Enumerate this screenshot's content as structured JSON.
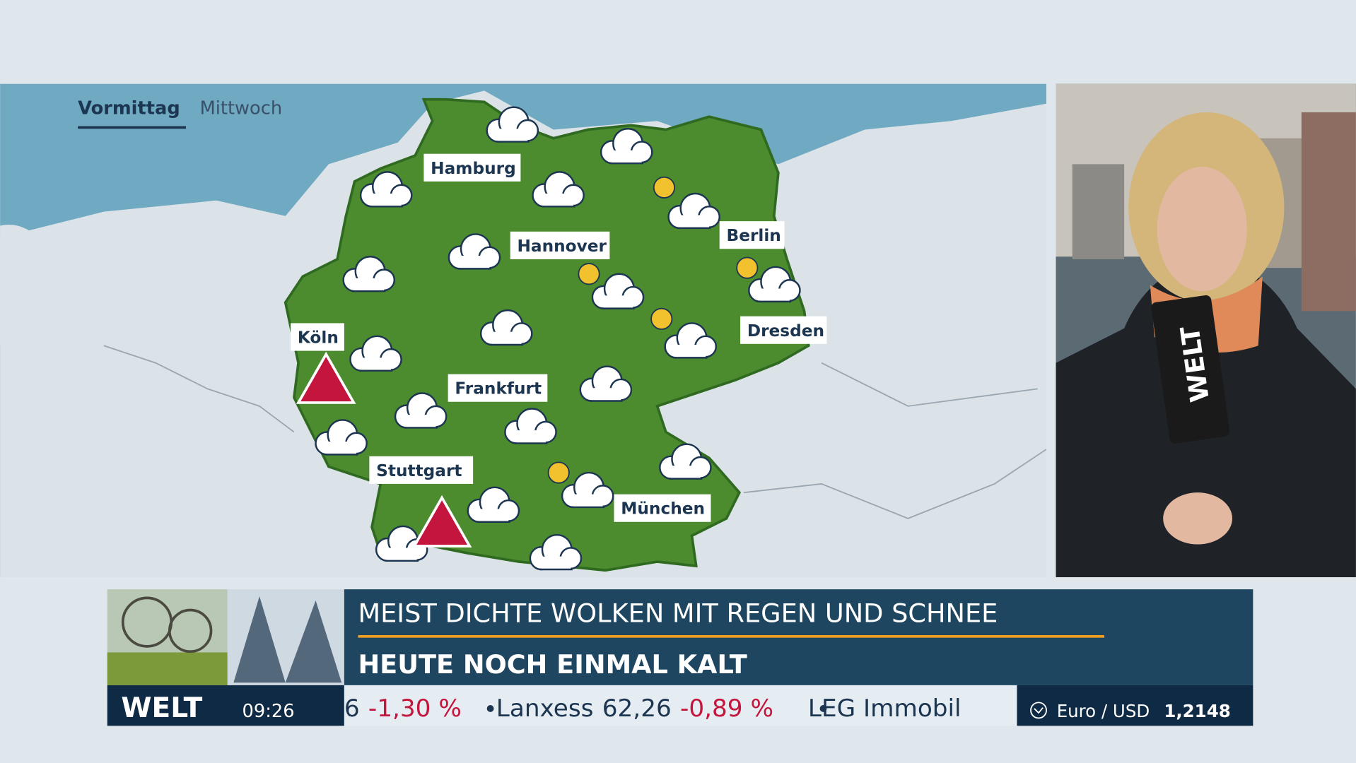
{
  "map": {
    "tabs": [
      "Vormittag",
      "Mittwoch"
    ],
    "cities": [
      "Hamburg",
      "Hannover",
      "Berlin",
      "Köln",
      "Dresden",
      "Frankfurt",
      "Stuttgart",
      "München"
    ]
  },
  "lower_third": {
    "headline": "MEIST DICHTE WOLKEN MIT REGEN UND SCHNEE",
    "subline": "HEUTE NOCH EINMAL KALT",
    "logo": "WELT",
    "time": "09:26",
    "ticker": [
      {
        "value": "6",
        "change": "-1,30 %"
      },
      {
        "name": "Lanxess",
        "value": "62,26",
        "change": "-0,89 %"
      },
      {
        "name": "LEG Immobil"
      }
    ],
    "currency": {
      "label": "Euro / USD",
      "value": "1,2148"
    }
  },
  "mic_logo": "WELT"
}
